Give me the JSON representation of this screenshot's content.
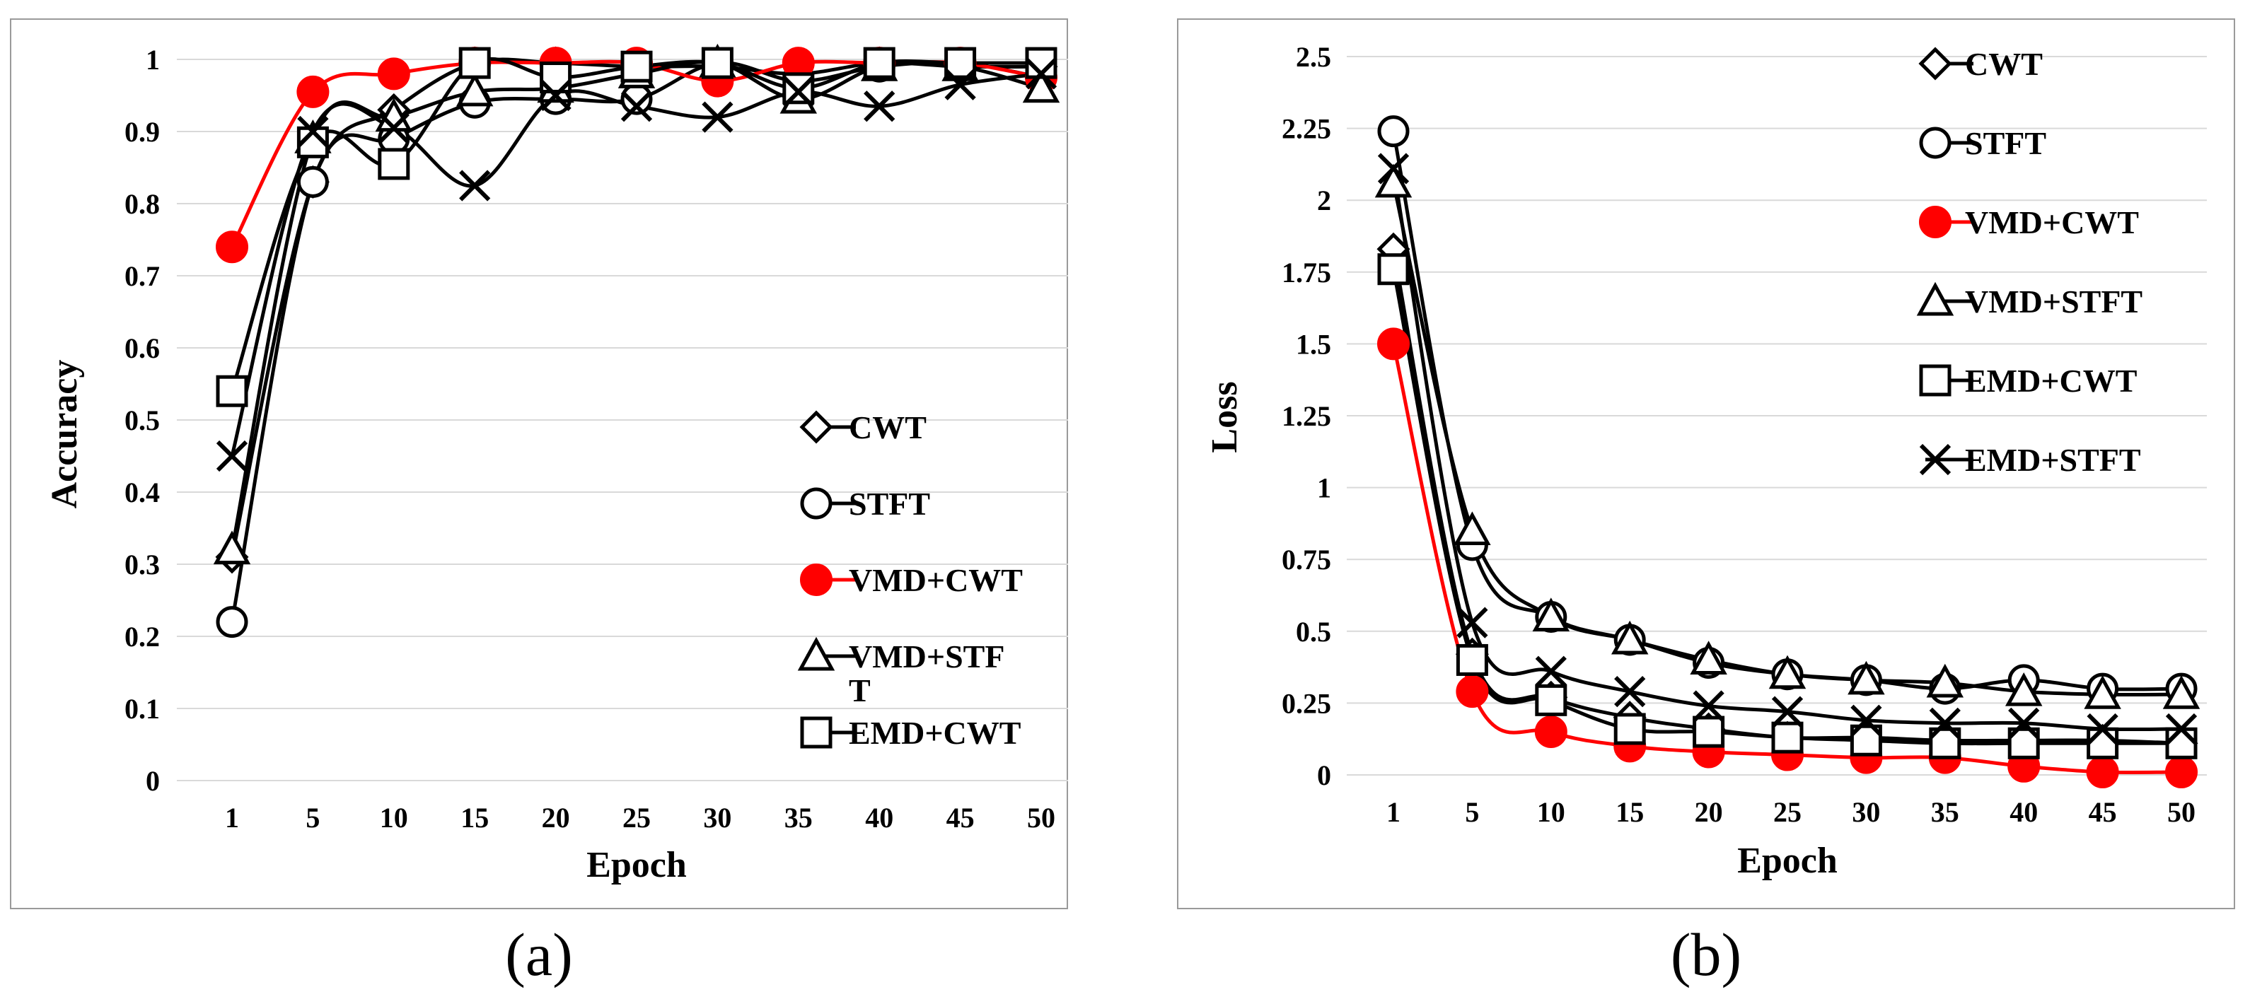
{
  "figure": {
    "captions": [
      "(a)",
      "(b)"
    ]
  },
  "chart_data": [
    {
      "type": "line",
      "title": "",
      "xlabel": "Epoch",
      "ylabel": "Accuracy",
      "categories": [
        "1",
        "5",
        "10",
        "15",
        "20",
        "25",
        "30",
        "35",
        "40",
        "45",
        "50"
      ],
      "ylim": [
        0,
        1
      ],
      "yticks": [
        "0",
        "0.1",
        "0.2",
        "0.3",
        "0.4",
        "0.5",
        "0.6",
        "0.7",
        "0.8",
        "0.9",
        "1"
      ],
      "grid": true,
      "legend_position": "bottom-right",
      "legend_labels": [
        "CWT",
        "STFT",
        "VMD+CWT",
        "VMD+STF",
        "EMD+CWT"
      ],
      "legend_wrap_fragment": "T",
      "series": [
        {
          "name": "CWT",
          "marker": "diamond",
          "color": "#000000",
          "values": [
            0.31,
            0.83,
            0.93,
            0.995,
            0.995,
            0.99,
            0.99,
            0.98,
            0.995,
            0.99,
            0.99
          ]
        },
        {
          "name": "STFT",
          "marker": "circle",
          "color": "#000000",
          "values": [
            0.22,
            0.83,
            0.89,
            0.94,
            0.945,
            0.945,
            0.995,
            0.97,
            0.99,
            0.995,
            0.975
          ]
        },
        {
          "name": "VMD+CWT",
          "marker": "filled-circle",
          "color": "#ff0000",
          "values": [
            0.74,
            0.955,
            0.98,
            0.995,
            0.995,
            0.995,
            0.97,
            0.995,
            0.995,
            0.995,
            0.975
          ]
        },
        {
          "name": "VMD+STFT",
          "marker": "triangle",
          "color": "#000000",
          "values": [
            0.32,
            0.89,
            0.92,
            0.955,
            0.96,
            0.98,
            0.995,
            0.945,
            0.99,
            0.99,
            0.96
          ]
        },
        {
          "name": "EMD+CWT",
          "marker": "square",
          "color": "#000000",
          "values": [
            0.54,
            0.885,
            0.855,
            0.995,
            0.975,
            0.99,
            0.995,
            0.96,
            0.995,
            0.995,
            0.995
          ]
        },
        {
          "name": "EMD+STFT",
          "marker": "x",
          "color": "#000000",
          "in_legend": false,
          "values": [
            0.45,
            0.9,
            0.905,
            0.825,
            0.95,
            0.935,
            0.92,
            0.955,
            0.935,
            0.965,
            0.98
          ]
        }
      ]
    },
    {
      "type": "line",
      "title": "",
      "xlabel": "Epoch",
      "ylabel": "Loss",
      "categories": [
        "1",
        "5",
        "10",
        "15",
        "20",
        "25",
        "30",
        "35",
        "40",
        "45",
        "50"
      ],
      "ylim": [
        0,
        2.5
      ],
      "yticks": [
        "0",
        "0.25",
        "0.5",
        "0.75",
        "1",
        "1.25",
        "1.5",
        "1.75",
        "2",
        "2.25",
        "2.5"
      ],
      "grid": true,
      "legend_position": "top-right",
      "legend_labels": [
        "CWT",
        "STFT",
        "VMD+CWT",
        "VMD+STFT",
        "EMD+CWT",
        "EMD+STFT"
      ],
      "series": [
        {
          "name": "CWT",
          "marker": "diamond",
          "color": "#000000",
          "values": [
            1.83,
            0.42,
            0.27,
            0.2,
            0.16,
            0.13,
            0.13,
            0.12,
            0.12,
            0.12,
            0.11
          ]
        },
        {
          "name": "STFT",
          "marker": "circle",
          "color": "#000000",
          "values": [
            2.24,
            0.8,
            0.55,
            0.47,
            0.39,
            0.35,
            0.33,
            0.3,
            0.33,
            0.3,
            0.3
          ]
        },
        {
          "name": "VMD+CWT",
          "marker": "filled-circle",
          "color": "#ff0000",
          "values": [
            1.5,
            0.29,
            0.15,
            0.1,
            0.08,
            0.07,
            0.06,
            0.06,
            0.03,
            0.01,
            0.01
          ]
        },
        {
          "name": "VMD+STFT",
          "marker": "triangle",
          "color": "#000000",
          "values": [
            2.06,
            0.85,
            0.55,
            0.47,
            0.4,
            0.35,
            0.33,
            0.32,
            0.29,
            0.28,
            0.28
          ]
        },
        {
          "name": "EMD+CWT",
          "marker": "square",
          "color": "#000000",
          "values": [
            1.76,
            0.4,
            0.26,
            0.16,
            0.15,
            0.13,
            0.12,
            0.11,
            0.11,
            0.11,
            0.11
          ]
        },
        {
          "name": "EMD+STFT",
          "marker": "x",
          "color": "#000000",
          "values": [
            2.11,
            0.53,
            0.36,
            0.29,
            0.24,
            0.22,
            0.19,
            0.18,
            0.18,
            0.16,
            0.16
          ]
        }
      ]
    }
  ]
}
